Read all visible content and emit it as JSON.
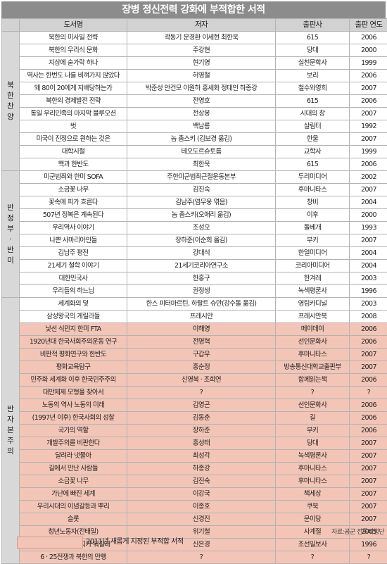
{
  "title": "장병 정신전력 강화에 부적합한 서적",
  "headers": {
    "title": "도서명",
    "author": "저자",
    "publisher": "출판사",
    "year": "출판 연도"
  },
  "categories": [
    {
      "label": "북한 찬양",
      "rows": [
        {
          "title": "북한의 미사일 전략",
          "author": "곽동기 문경환 이세현 최한욱",
          "publisher": "615",
          "year": "2006",
          "new": false
        },
        {
          "title": "북한의 우리식 문화",
          "author": "주강현",
          "publisher": "당대",
          "year": "2000",
          "new": false
        },
        {
          "title": "지상에 숟가락 하나",
          "author": "현기영",
          "publisher": "실천문학사",
          "year": "1999",
          "new": false
        },
        {
          "title": "역사는 한번도 나를 비껴가지 않았다",
          "author": "허영철",
          "publisher": "보리",
          "year": "2006",
          "new": false
        },
        {
          "title": "왜 80이 20에게 지배당하는가",
          "author": "박준성 안건모 이원하 홍세화 정태인 하종강",
          "publisher": "철수와영희",
          "year": "2007",
          "new": false
        },
        {
          "title": "북한의 경제발전 전략",
          "author": "전영호",
          "publisher": "615",
          "year": "2006",
          "new": false
        },
        {
          "title": "통일 우리민족의 마지막 블루오션",
          "author": "전상봉",
          "publisher": "시대의 창",
          "year": "2007",
          "new": false
        },
        {
          "title": "벗",
          "author": "백남룡",
          "publisher": "살림터",
          "year": "1992",
          "new": false
        },
        {
          "title": "미국이 진정으로 원하는 것은",
          "author": "놈 촘스키 (김보경 옮김)",
          "publisher": "한울",
          "year": "2007",
          "new": false
        },
        {
          "title": "대학시절",
          "author": "테오도르슈토름",
          "publisher": "교학사",
          "year": "1999",
          "new": false
        },
        {
          "title": "핵과 한반도",
          "author": "최한욱",
          "publisher": "615",
          "year": "2006",
          "new": false
        }
      ]
    },
    {
      "label": "반정부·반미",
      "rows": [
        {
          "title": "미군범죄와 한미 SOFA",
          "author": "주한미군범죄근절운동본부",
          "publisher": "두리미디어",
          "year": "2002",
          "new": false
        },
        {
          "title": "소금꽃 나무",
          "author": "김진숙",
          "publisher": "후마니타스",
          "year": "2007",
          "new": false
        },
        {
          "title": "꽃속에 피가 흐른다",
          "author": "김남주(염무웅 엮음)",
          "publisher": "창비",
          "year": "2004",
          "new": false
        },
        {
          "title": "507년 정복은 계속된다",
          "author": "놈 촘스키(오애리 옮김)",
          "publisher": "이후",
          "year": "2000",
          "new": false
        },
        {
          "title": "우리역사 이야기",
          "author": "조성오",
          "publisher": "돌베개",
          "year": "1993",
          "new": false
        },
        {
          "title": "나쁜 사마리아인들",
          "author": "장하준(이순희 옮김)",
          "publisher": "부키",
          "year": "2007",
          "new": false
        },
        {
          "title": "김남주 평전",
          "author": "강대석",
          "publisher": "한얼미디어",
          "year": "2004",
          "new": false
        },
        {
          "title": "21세기 철학 이야기",
          "author": "21세기코리아연구소",
          "publisher": "코리아미디어",
          "year": "2004",
          "new": false
        },
        {
          "title": "대한민국사",
          "author": "한홍구",
          "publisher": "한겨레",
          "year": "2003",
          "new": false
        },
        {
          "title": "우리들의 하느님",
          "author": "권정생",
          "publisher": "녹색평론사",
          "year": "1996",
          "new": false
        }
      ]
    },
    {
      "label": "반자본주의",
      "rows": [
        {
          "title": "세계화의 덫",
          "author": "한스 피터마르틴, 하랄트 슈만(강수돌 옮김)",
          "publisher": "영림카디널",
          "year": "2003",
          "new": false
        },
        {
          "title": "삼성왕국의 게릴라들",
          "author": "프레시안",
          "publisher": "프레시안북",
          "year": "2008",
          "new": false
        },
        {
          "title": "낯선 식민지 한미 FTA",
          "author": "이해영",
          "publisher": "메이데이",
          "year": "2006",
          "new": true
        },
        {
          "title": "1920년대 한국사회주의운동 연구",
          "author": "전명혁",
          "publisher": "선인문화사",
          "year": "2006",
          "new": true
        },
        {
          "title": "비판적 평화연구와 한반도",
          "author": "구갑우",
          "publisher": "후마니타스",
          "year": "2007",
          "new": true
        },
        {
          "title": "평화교육탐구",
          "author": "홍순정",
          "publisher": "방송통신대학교출판부",
          "year": "2007",
          "new": true
        },
        {
          "title": "민주화 세계화 이후 한국민주주의",
          "author": "신영복 · 조희연",
          "publisher": "함께읽는책",
          "year": "2006",
          "new": true
        },
        {
          "title": "대안체제 모형을 찾아서",
          "author": "?",
          "publisher": "?",
          "year": "?",
          "new": true
        },
        {
          "title": "노동의 역사 노동의 미래",
          "author": "김영곤",
          "publisher": "선인문화사",
          "year": "2006",
          "new": true
        },
        {
          "title": "(1997년 이후) 한국사회의 성찰",
          "author": "김동춘",
          "publisher": "길",
          "year": "2006",
          "new": true
        },
        {
          "title": "국가의 역할",
          "author": "장하준",
          "publisher": "부키",
          "year": "2006",
          "new": true
        },
        {
          "title": "개발주의를 비판한다",
          "author": "홍성태",
          "publisher": "당대",
          "year": "2007",
          "new": true
        },
        {
          "title": "달려라 냇물아",
          "author": "최성각",
          "publisher": "녹색평론사",
          "year": "2007",
          "new": true
        },
        {
          "title": "길에서 만난 사람들",
          "author": "하종강",
          "publisher": "후마니타스",
          "year": "2007",
          "new": true
        },
        {
          "title": "소금꽃 나무",
          "author": "김진숙",
          "publisher": "후마니타스",
          "year": "2007",
          "new": true
        },
        {
          "title": "가난에 빠진 세계",
          "author": "이강국",
          "publisher": "책세상",
          "year": "2007",
          "new": true
        },
        {
          "title": "우리시대의 이념갈등과 뿌리",
          "author": "이종호",
          "publisher": "쿠북",
          "year": "2007",
          "new": true
        },
        {
          "title": "슬롯",
          "author": "신경진",
          "publisher": "문이당",
          "year": "2007",
          "new": true
        },
        {
          "title": "청년노동자(전태일)",
          "author": "위기철",
          "publisher": "사계절",
          "year": "2005",
          "new": true
        },
        {
          "title": "사랑이 뭐길래 정치가 뭐길래",
          "author": "신은경",
          "publisher": "조선일보사",
          "year": "1996",
          "new": true
        },
        {
          "title": "6 · 25전쟁과 북한의 만행",
          "author": "?",
          "publisher": "?",
          "year": "?",
          "new": true
        }
      ]
    }
  ],
  "source": "자료:공군 전투비행단",
  "legend": "2011년 새롭게 지정된 부적합 서적",
  "colors": {
    "title_bg": "#8c8c8c",
    "header_bg": "#d2d2d2",
    "new_row_bg": "#f2c5b6",
    "category_bg": "#d8d8d8"
  }
}
